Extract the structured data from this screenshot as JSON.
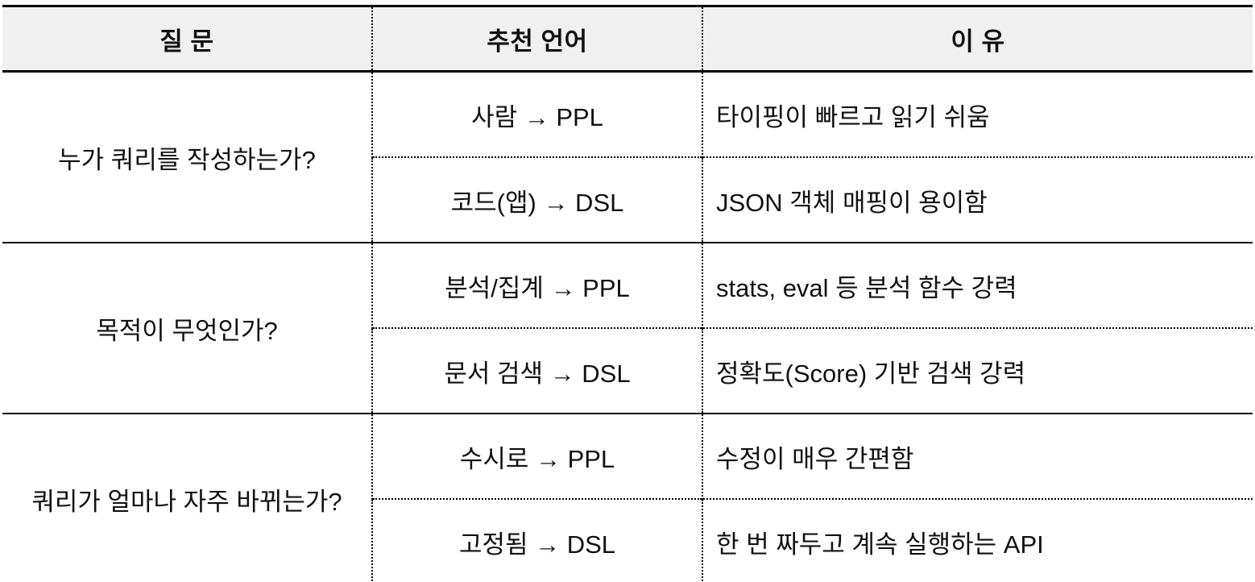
{
  "table": {
    "headers": {
      "question": "질 문",
      "language": "추천 언어",
      "reason": "이 유"
    },
    "rows": [
      {
        "question": "누가 쿼리를 작성하는가?",
        "subs": [
          {
            "lang": "사람 → PPL",
            "reason": "타이핑이 빠르고 읽기 쉬움"
          },
          {
            "lang": "코드(앱) → DSL",
            "reason": "JSON 객체 매핑이 용이함"
          }
        ]
      },
      {
        "question": "목적이 무엇인가?",
        "subs": [
          {
            "lang": "분석/집계 → PPL",
            "reason": "stats, eval 등 분석 함수 강력"
          },
          {
            "lang": "문서 검색 → DSL",
            "reason": "정확도(Score) 기반 검색 강력"
          }
        ]
      },
      {
        "question": "쿼리가 얼마나 자주 바뀌는가?",
        "subs": [
          {
            "lang": "수시로 → PPL",
            "reason": "수정이 매우 간편함"
          },
          {
            "lang": "고정됨 → DSL",
            "reason": "한 번 짜두고 계속 실행하는 API"
          }
        ]
      }
    ],
    "colors": {
      "header_bg": "#f0f0f0",
      "border": "#000000",
      "text": "#111111",
      "background": "#ffffff"
    }
  }
}
